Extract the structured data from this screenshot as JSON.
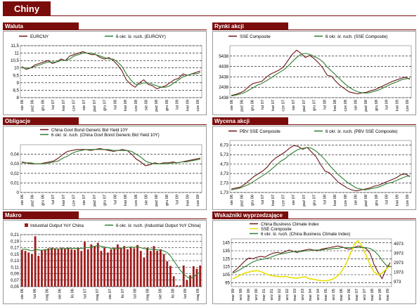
{
  "page": {
    "title": "Chiny"
  },
  "colors": {
    "header": "#7a0c0c",
    "series_main": "#6b1515",
    "series_ma": "#2f7d2f",
    "bar": "#a01c1c",
    "yellow": "#e8e000",
    "grid": "#000000"
  },
  "panels": [
    {
      "id": "waluta",
      "header": "Waluta",
      "legend": [
        "EURCNY",
        "6 okr. śr. ruch. (EURCNY)"
      ]
    },
    {
      "id": "rynki",
      "header": "Rynki akcji",
      "legend": [
        "SSE Composite",
        "6 okr. śr. ruch. (SSE Composite)"
      ]
    },
    {
      "id": "obligacje",
      "header": "Obligacje",
      "legend": [
        "China Govt Bond Generic Bid Yield 10Y",
        "6 okr. śr. ruch. (China Govt Bond Generic Bid Yield 10Y)"
      ]
    },
    {
      "id": "wycena",
      "header": "Wycena akcji",
      "legend": [
        "PBV SSE Composite",
        "6 okr. śr. ruch. (PBV SSE Composite)"
      ]
    },
    {
      "id": "makro",
      "header": "Makro",
      "legend": [
        "Industrial Output YoY China",
        "6 okr. śr. ruch. (Industrial Output YoY China)"
      ]
    },
    {
      "id": "wskazniki",
      "header": "Wskaźniki wyprzedzające",
      "legend": [
        "China Business Climate Index",
        "SSE Composite",
        "6 okr. śr. ruch. (China Business Climate Index)"
      ]
    }
  ],
  "chart_data": [
    {
      "panel": "waluta",
      "type": "line",
      "yticks": [
        "8",
        "8,5",
        "9",
        "9,5",
        "10",
        "10,5",
        "11",
        "11,5"
      ],
      "ylim": [
        8,
        11.5
      ],
      "xticks": [
        "sie 06",
        "paź 06",
        "gru 06",
        "lut 07",
        "kwi 07",
        "cze 07",
        "sie 07",
        "paź 07",
        "gru 07",
        "lut 08",
        "kwi 08",
        "cze 08",
        "sie 08",
        "paź 08",
        "gru 08",
        "lut 09",
        "kwi 09",
        "cze 09"
      ],
      "series": [
        {
          "name": "EURCNY",
          "values": [
            10.1,
            9.9,
            10.0,
            10.2,
            10.3,
            10.4,
            10.5,
            10.3,
            10.4,
            10.6,
            10.5,
            10.8,
            10.9,
            11.0,
            11.1,
            11.0,
            10.9,
            10.9,
            10.7,
            10.6,
            10.7,
            10.5,
            10.2,
            9.8,
            9.2,
            8.9,
            8.7,
            9.0,
            9.2,
            8.9,
            8.8,
            8.6,
            8.7,
            8.8,
            9.0,
            9.2,
            9.3,
            9.6,
            9.5,
            9.6,
            9.7,
            9.8
          ]
        },
        {
          "name": "6 okr. śr. ruch. (EURCNY)",
          "values": [
            10.0,
            10.0,
            10.0,
            10.1,
            10.2,
            10.3,
            10.4,
            10.4,
            10.4,
            10.5,
            10.5,
            10.6,
            10.8,
            10.9,
            11.0,
            11.0,
            11.0,
            10.9,
            10.8,
            10.7,
            10.6,
            10.6,
            10.4,
            10.1,
            9.6,
            9.2,
            8.9,
            8.9,
            9.0,
            9.0,
            8.9,
            8.8,
            8.7,
            8.7,
            8.8,
            9.0,
            9.2,
            9.4,
            9.5,
            9.6,
            9.6,
            9.7
          ]
        }
      ]
    },
    {
      "panel": "rynki",
      "type": "line",
      "yticks": [
        "1438",
        "2438",
        "3438",
        "4438",
        "5438"
      ],
      "ylim": [
        1438,
        6438
      ],
      "xticks": [
        "sie 06",
        "paź 06",
        "gru 06",
        "lut 07",
        "kwi 07",
        "cze 07",
        "sie 07",
        "paź 07",
        "gru 07",
        "lut 08",
        "kwi 08",
        "cze 08",
        "sie 08",
        "paź 08",
        "gru 08",
        "lut 09",
        "kwi 09",
        "cze 09"
      ],
      "series": [
        {
          "name": "SSE Composite",
          "values": [
            1650,
            1750,
            1900,
            2100,
            2500,
            2800,
            2900,
            3000,
            3400,
            3700,
            3900,
            4100,
            4400,
            5000,
            5600,
            6000,
            5700,
            5300,
            5500,
            5200,
            4800,
            4300,
            3600,
            3500,
            3000,
            2600,
            2300,
            2000,
            1900,
            1800,
            1900,
            1950,
            2100,
            2200,
            2400,
            2600,
            2800,
            3000,
            3150,
            3300,
            3400,
            3200
          ]
        },
        {
          "name": "6 okr. śr. ruch. (SSE Composite)",
          "values": [
            1600,
            1680,
            1780,
            1920,
            2150,
            2400,
            2650,
            2800,
            3050,
            3300,
            3600,
            3850,
            4100,
            4450,
            4900,
            5300,
            5600,
            5700,
            5600,
            5400,
            5200,
            4900,
            4400,
            4000,
            3600,
            3200,
            2800,
            2450,
            2200,
            2000,
            1900,
            1880,
            1950,
            2050,
            2200,
            2400,
            2600,
            2800,
            2950,
            3150,
            3250,
            3300
          ]
        }
      ]
    },
    {
      "panel": "obligacje",
      "type": "line",
      "yticks": [
        "0",
        "0,01",
        "0,02",
        "0,03",
        "0,04"
      ],
      "ylim": [
        0,
        0.05
      ],
      "xticks": [
        "sie 06",
        "paź 06",
        "gru 06",
        "lut 07",
        "kwi 07",
        "cze 07",
        "sie 07",
        "paź 07",
        "gru 07",
        "lut 08",
        "kwi 08",
        "cze 08",
        "sie 08",
        "paź 08",
        "gru 08",
        "lut 09",
        "kwi 09",
        "cze 09"
      ],
      "series": [
        {
          "name": "China Govt Bond Generic Bid Yield 10Y",
          "values": [
            0.032,
            0.031,
            0.03,
            0.03,
            0.03,
            0.031,
            0.032,
            0.033,
            0.036,
            0.04,
            0.043,
            0.044,
            0.045,
            0.045,
            0.045,
            0.044,
            0.045,
            0.046,
            0.045,
            0.044,
            0.043,
            0.044,
            0.045,
            0.044,
            0.04,
            0.035,
            0.032,
            0.028,
            0.029,
            0.031,
            0.03,
            0.031,
            0.031,
            0.032,
            0.031,
            0.032,
            0.033,
            0.034,
            0.035,
            0.036
          ]
        },
        {
          "name": "6 okr. śr. ruch. (China Govt Bond Generic Bid Yield 10Y)",
          "values": [
            0.031,
            0.031,
            0.031,
            0.03,
            0.03,
            0.03,
            0.031,
            0.032,
            0.033,
            0.036,
            0.038,
            0.041,
            0.043,
            0.044,
            0.045,
            0.045,
            0.045,
            0.045,
            0.045,
            0.045,
            0.044,
            0.044,
            0.044,
            0.044,
            0.043,
            0.04,
            0.037,
            0.033,
            0.031,
            0.03,
            0.03,
            0.03,
            0.03,
            0.031,
            0.031,
            0.032,
            0.032,
            0.033,
            0.034,
            0.035
          ]
        }
      ]
    },
    {
      "panel": "wycena",
      "type": "line",
      "yticks": [
        "1,73",
        "2,73",
        "3,73",
        "4,73",
        "5,73",
        "6,73"
      ],
      "ylim": [
        1.73,
        7.23
      ],
      "xticks": [
        "sie 06",
        "paź 06",
        "gru 06",
        "lut 07",
        "kwi 07",
        "cze 07",
        "sie 07",
        "paź 07",
        "gru 07",
        "lut 08",
        "kwi 08",
        "cze 08",
        "sie 08",
        "paź 08",
        "gru 08",
        "lut 09",
        "kwi 09",
        "cze 09"
      ],
      "series": [
        {
          "name": "PBV SSE Composite",
          "values": [
            2.1,
            2.2,
            2.3,
            2.6,
            3.0,
            3.4,
            3.7,
            4.0,
            4.4,
            5.0,
            5.4,
            5.7,
            6.0,
            6.4,
            6.7,
            6.6,
            6.3,
            6.5,
            6.0,
            5.5,
            4.7,
            4.0,
            3.8,
            3.3,
            2.8,
            2.5,
            2.2,
            2.0,
            1.9,
            2.0,
            2.1,
            2.2,
            2.4,
            2.5,
            2.7,
            2.9,
            3.1,
            3.3,
            3.6,
            3.7,
            3.4
          ]
        },
        {
          "name": "6 okr. śr. ruch. (PBV SSE Composite)",
          "values": [
            2.0,
            2.1,
            2.2,
            2.4,
            2.6,
            2.9,
            3.2,
            3.5,
            3.8,
            4.2,
            4.6,
            5.0,
            5.3,
            5.7,
            6.0,
            6.3,
            6.4,
            6.5,
            6.4,
            6.1,
            5.7,
            5.2,
            4.6,
            4.1,
            3.6,
            3.2,
            2.8,
            2.5,
            2.2,
            2.1,
            2.0,
            2.1,
            2.2,
            2.3,
            2.5,
            2.7,
            2.8,
            3.0,
            3.2,
            3.4,
            3.5
          ]
        }
      ]
    },
    {
      "panel": "makro",
      "type": "bar",
      "yticks": [
        "0,05",
        "0,07",
        "0,09",
        "0,11",
        "0,13",
        "0,15",
        "0,17",
        "0,19",
        "0,21"
      ],
      "ylim": [
        0.05,
        0.21
      ],
      "xticks": [
        "sie 06",
        "lut 06",
        "maj 06",
        "sie 06",
        "lis 06",
        "lut 07",
        "maj 07",
        "sie 07",
        "lis 07",
        "lut 08",
        "maj 08",
        "sie 08",
        "lis 08",
        "lut 09",
        "maj 09"
      ],
      "series": [
        {
          "name": "Industrial Output YoY China",
          "values": [
            0.163,
            0.16,
            0.155,
            0.15,
            0.205,
            0.145,
            0.162,
            0.165,
            0.168,
            0.17,
            0.168,
            0.165,
            0.17,
            0.168,
            0.17,
            0.165,
            0.163,
            0.17,
            0.16,
            0.188,
            0.165,
            0.18,
            0.175,
            0.185,
            0.16,
            0.17,
            0.155,
            0.165,
            0.17,
            0.18,
            0.17,
            0.175,
            0.165,
            0.17,
            0.168,
            0.178,
            0.16,
            0.14,
            0.17,
            0.16,
            0.175,
            0.16,
            0.165,
            0.15,
            0.128,
            0.114,
            0.082,
            0.054,
            0.054,
            0.115,
            0.07,
            0.085,
            0.113,
            0.105,
            0.115
          ]
        },
        {
          "name": "6 okr. śr. ruch. (Industrial Output YoY China)",
          "values": [
            0.165,
            0.165,
            0.163,
            0.16,
            0.164,
            0.163,
            0.162,
            0.163,
            0.164,
            0.166,
            0.167,
            0.166,
            0.167,
            0.167,
            0.168,
            0.168,
            0.167,
            0.168,
            0.167,
            0.17,
            0.17,
            0.172,
            0.174,
            0.176,
            0.174,
            0.172,
            0.17,
            0.168,
            0.166,
            0.167,
            0.168,
            0.17,
            0.171,
            0.172,
            0.171,
            0.172,
            0.17,
            0.167,
            0.166,
            0.165,
            0.165,
            0.163,
            0.162,
            0.16,
            0.155,
            0.145,
            0.13,
            0.115,
            0.1,
            0.09,
            0.08,
            0.075,
            0.08,
            0.088,
            0.095
          ]
        }
      ]
    },
    {
      "panel": "wskazniki",
      "type": "line",
      "yticks_left": [
        "95",
        "105",
        "115",
        "125",
        "135",
        "145"
      ],
      "ylim_left": [
        90,
        150
      ],
      "yticks_right": [
        "973",
        "1973",
        "2973",
        "3973",
        "4973"
      ],
      "ylim_right": [
        473,
        5473
      ],
      "xticks": [
        "mar 99",
        "wrz 99",
        "mar 00",
        "wrz 00",
        "mar 01",
        "wrz 01",
        "mar 02",
        "wrz 02",
        "mar 03",
        "wrz 03",
        "mar 04",
        "wrz 04",
        "mar 05",
        "wrz 05",
        "mar 06",
        "wrz 06",
        "mar 07",
        "wrz 07",
        "mar 08",
        "wrz 08",
        "mar 09"
      ],
      "series": [
        {
          "name": "China Business Climate Index",
          "axis": "left",
          "values": [
            108,
            112,
            117,
            122,
            126,
            125,
            127,
            128,
            127,
            130,
            132,
            133,
            132,
            134,
            136,
            134,
            133,
            135,
            136,
            137,
            136,
            135,
            137,
            138,
            139,
            140,
            141,
            140,
            138,
            137,
            139,
            141,
            140,
            138,
            132,
            118,
            108,
            100,
            112,
            120
          ]
        },
        {
          "name": "SSE Composite",
          "axis": "right",
          "values": [
            1300,
            1500,
            1700,
            1900,
            2000,
            2100,
            2150,
            2050,
            1850,
            1700,
            1600,
            1550,
            1500,
            1550,
            1450,
            1400,
            1350,
            1450,
            1500,
            1300,
            1250,
            1150,
            1100,
            1080,
            1150,
            1300,
            1600,
            2100,
            2800,
            3800,
            4800,
            5300,
            4700,
            3800,
            2800,
            2000,
            1700,
            1900,
            2300,
            2700
          ]
        },
        {
          "name": "6 okr. śr. ruch. (China Business Climate Index)",
          "axis": "left",
          "values": [
            107,
            109,
            112,
            115,
            118,
            121,
            123,
            124,
            125,
            126,
            128,
            130,
            131,
            132,
            133,
            134,
            134,
            134,
            135,
            135,
            136,
            136,
            136,
            137,
            137,
            138,
            138,
            139,
            139,
            139,
            139,
            139,
            139,
            139,
            138,
            135,
            130,
            123,
            117,
            115
          ]
        }
      ]
    }
  ]
}
